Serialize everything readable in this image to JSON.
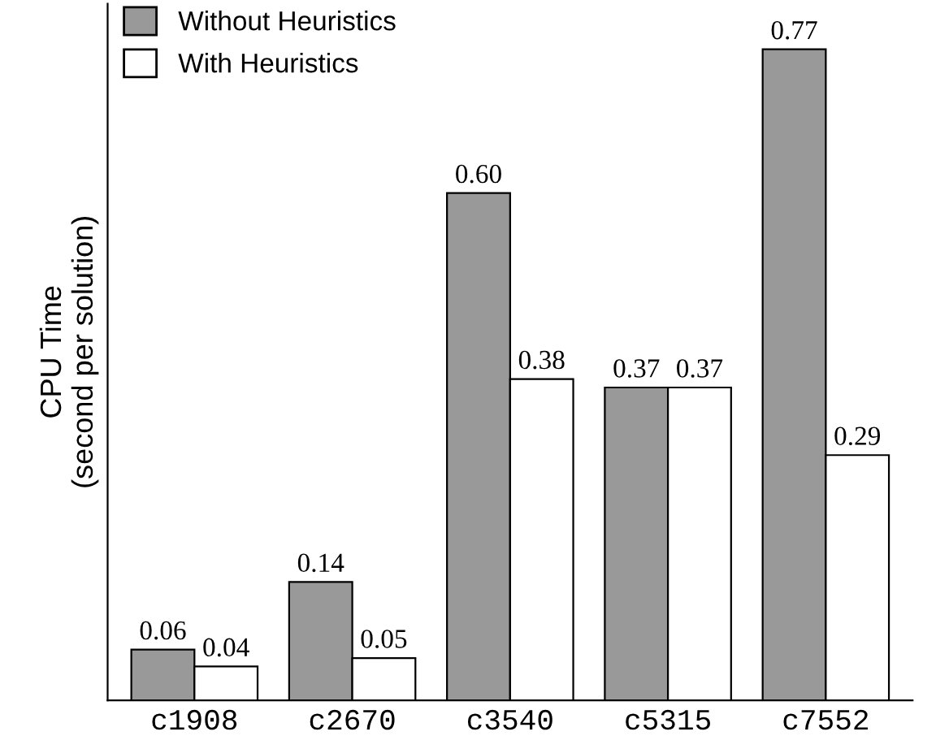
{
  "chart_data": {
    "type": "bar",
    "ylabel": "CPU Time\n(second per solution)",
    "categories": [
      "c1908",
      "c2670",
      "c3540",
      "c5315",
      "c7552"
    ],
    "series": [
      {
        "name": "Without Heuristics",
        "color": "#999999",
        "values": [
          0.06,
          0.14,
          0.6,
          0.37,
          0.77
        ],
        "value_labels": [
          "0.06",
          "0.14",
          "0.60",
          "0.37",
          "0.77"
        ]
      },
      {
        "name": "With Heuristics",
        "color": "#ffffff",
        "values": [
          0.04,
          0.05,
          0.38,
          0.37,
          0.29
        ],
        "value_labels": [
          "0.04",
          "0.05",
          "0.38",
          "0.37",
          "0.29"
        ]
      }
    ],
    "legend": "top left",
    "grid": false,
    "tick_labels": "x"
  }
}
